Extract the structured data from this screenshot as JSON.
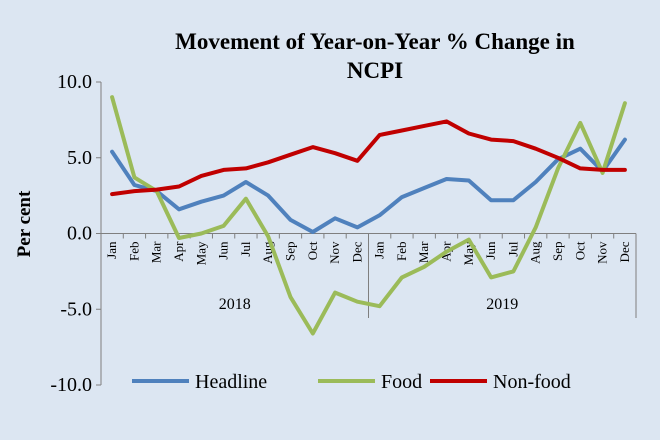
{
  "chart_data": {
    "type": "line",
    "title_lines": [
      "Movement of Year-on-Year % Change in",
      "NCPI"
    ],
    "ylabel": "Per cent",
    "xlabel": "",
    "ylim": [
      -10,
      10
    ],
    "yticks": [
      "10.0",
      "5.0",
      "0.0",
      "-5.0",
      "-10.0"
    ],
    "ytick_values": [
      10,
      5,
      0,
      -5,
      -10
    ],
    "categories": [
      "Jan",
      "Feb",
      "Mar",
      "Apr",
      "May",
      "Jun",
      "Jul",
      "Aug",
      "Sep",
      "Oct",
      "Nov",
      "Dec",
      "Jan",
      "Feb",
      "Mar",
      "Apr",
      "May",
      "Jun",
      "Jul",
      "Aug",
      "Sep",
      "Oct",
      "Nov",
      "Dec"
    ],
    "groups": [
      {
        "label": "2018",
        "start": 0,
        "end": 11
      },
      {
        "label": "2019",
        "start": 12,
        "end": 23
      }
    ],
    "series": [
      {
        "name": "Headline",
        "color": "#4f81bd",
        "values": [
          5.4,
          3.2,
          2.8,
          1.6,
          2.1,
          2.5,
          3.4,
          2.5,
          0.9,
          0.1,
          1.0,
          0.4,
          1.2,
          2.4,
          3.0,
          3.6,
          3.5,
          2.2,
          2.2,
          3.4,
          4.9,
          5.6,
          4.1,
          6.2
        ]
      },
      {
        "name": "Food",
        "color": "#9bbb59",
        "values": [
          9.0,
          3.7,
          2.8,
          -0.3,
          0.0,
          0.5,
          2.3,
          -0.2,
          -4.2,
          -6.6,
          -3.9,
          -4.5,
          -4.8,
          -2.9,
          -2.2,
          -1.2,
          -0.4,
          -2.9,
          -2.5,
          0.4,
          4.3,
          7.3,
          4.0,
          8.6
        ]
      },
      {
        "name": "Non-food",
        "color": "#c00000",
        "values": [
          2.6,
          2.8,
          2.9,
          3.1,
          3.8,
          4.2,
          4.3,
          4.7,
          5.2,
          5.7,
          5.3,
          4.8,
          6.5,
          6.8,
          7.1,
          7.4,
          6.6,
          6.2,
          6.1,
          5.6,
          5.0,
          4.3,
          4.2,
          4.2
        ]
      }
    ],
    "legend_position": "bottom",
    "grid": false
  }
}
